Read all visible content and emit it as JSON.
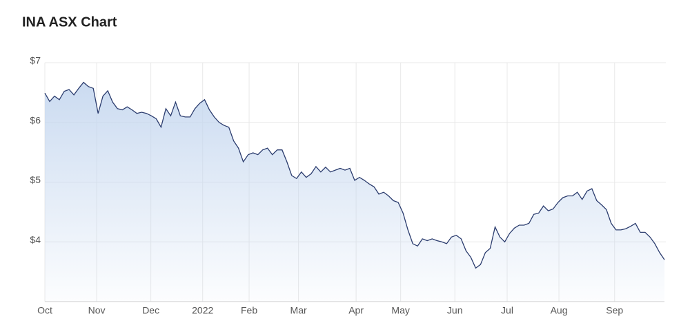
{
  "chart_data": {
    "type": "area",
    "title": "INA ASX Chart",
    "color": "#2b3c6e",
    "area_color": "#c5d7ef",
    "grid": true,
    "xlim": [
      0,
      128
    ],
    "xticks": [
      {
        "value": 0,
        "label": "Oct"
      },
      {
        "value": 10.7,
        "label": "Nov"
      },
      {
        "value": 21.9,
        "label": "Dec"
      },
      {
        "value": 32.6,
        "label": "2022"
      },
      {
        "value": 42.2,
        "label": "Feb"
      },
      {
        "value": 52.4,
        "label": "Mar"
      },
      {
        "value": 64.3,
        "label": "Apr"
      },
      {
        "value": 73.5,
        "label": "May"
      },
      {
        "value": 84.7,
        "label": "Jun"
      },
      {
        "value": 95.5,
        "label": "Jul"
      },
      {
        "value": 106.2,
        "label": "Aug"
      },
      {
        "value": 117.7,
        "label": "Sep"
      }
    ],
    "ylim": [
      3,
      7
    ],
    "yticks": [
      {
        "value": 4,
        "label": "$4"
      },
      {
        "value": 5,
        "label": "$5"
      },
      {
        "value": 6,
        "label": "$6"
      },
      {
        "value": 7,
        "label": "$7"
      }
    ],
    "values": [
      6.49,
      6.35,
      6.44,
      6.38,
      6.52,
      6.55,
      6.46,
      6.57,
      6.67,
      6.6,
      6.57,
      6.15,
      6.44,
      6.53,
      6.34,
      6.23,
      6.21,
      6.26,
      6.21,
      6.15,
      6.17,
      6.15,
      6.11,
      6.06,
      5.92,
      6.23,
      6.11,
      6.34,
      6.11,
      6.09,
      6.09,
      6.23,
      6.32,
      6.38,
      6.21,
      6.09,
      6.0,
      5.95,
      5.92,
      5.69,
      5.57,
      5.34,
      5.46,
      5.49,
      5.46,
      5.54,
      5.57,
      5.46,
      5.54,
      5.54,
      5.34,
      5.11,
      5.06,
      5.17,
      5.08,
      5.14,
      5.26,
      5.17,
      5.25,
      5.17,
      5.2,
      5.23,
      5.2,
      5.23,
      5.03,
      5.08,
      5.03,
      4.97,
      4.92,
      4.8,
      4.83,
      4.77,
      4.69,
      4.66,
      4.48,
      4.2,
      3.97,
      3.93,
      4.05,
      4.02,
      4.05,
      4.02,
      4.0,
      3.97,
      4.08,
      4.11,
      4.05,
      3.85,
      3.74,
      3.56,
      3.62,
      3.82,
      3.89,
      4.25,
      4.08,
      4.0,
      4.14,
      4.23,
      4.28,
      4.28,
      4.31,
      4.46,
      4.48,
      4.6,
      4.52,
      4.55,
      4.66,
      4.74,
      4.77,
      4.77,
      4.83,
      4.71,
      4.85,
      4.89,
      4.69,
      4.62,
      4.54,
      4.31,
      4.2,
      4.2,
      4.22,
      4.26,
      4.31,
      4.16,
      4.16,
      4.08,
      3.97,
      3.82,
      3.7
    ]
  }
}
